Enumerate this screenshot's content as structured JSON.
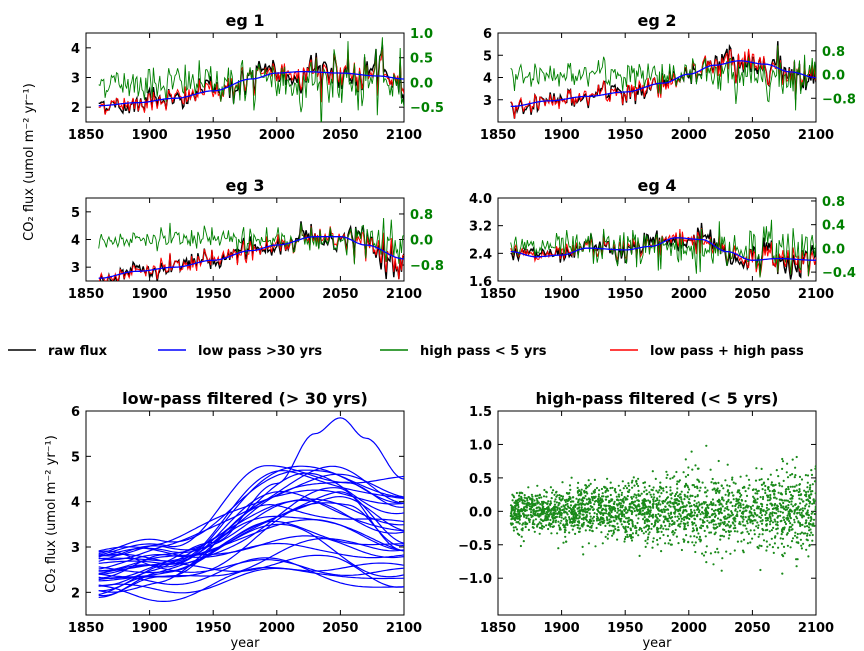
{
  "legend": [
    {
      "label": "raw flux",
      "color": "#000000"
    },
    {
      "label": "low pass >30 yrs",
      "color": "#0000ff"
    },
    {
      "label": "high pass < 5 yrs",
      "color": "#008000"
    },
    {
      "label": "low pass + high pass",
      "color": "#ff0000"
    }
  ],
  "shared_ylabel": "CO₂ flux (umol m⁻² yr⁻¹)",
  "chart_data": [
    {
      "type": "line",
      "title": "eg 1",
      "xlim": [
        1850,
        2100
      ],
      "xticks": [
        1850,
        1900,
        1950,
        2000,
        2050,
        2100
      ],
      "ylim": [
        1.5,
        4.5
      ],
      "yticks": [
        2,
        3,
        4
      ],
      "y2lim": [
        -0.8,
        1.0
      ],
      "y2ticks": [
        "1.0",
        "0.5",
        "0.0",
        "−0.5"
      ],
      "y2tick_values": [
        1.0,
        0.5,
        0.0,
        -0.5
      ],
      "low_pass": {
        "x": [
          1860,
          1890,
          1920,
          1950,
          1980,
          2000,
          2020,
          2050,
          2080,
          2100
        ],
        "y": [
          2.05,
          2.15,
          2.3,
          2.55,
          2.95,
          3.15,
          3.2,
          3.15,
          3.05,
          2.95
        ]
      },
      "raw_amplitude": 0.35,
      "high_pass_amplitude": 0.35
    },
    {
      "type": "line",
      "title": "eg 2",
      "xlim": [
        1850,
        2100
      ],
      "xticks": [
        1850,
        1900,
        1950,
        2000,
        2050,
        2100
      ],
      "ylim": [
        2.0,
        6.0
      ],
      "yticks": [
        3,
        4,
        5,
        6
      ],
      "y2lim": [
        -1.6,
        1.4
      ],
      "y2ticks": [
        "0.8",
        "0.0",
        "−0.8"
      ],
      "y2tick_values": [
        0.8,
        0.0,
        -0.8
      ],
      "low_pass": {
        "x": [
          1860,
          1890,
          1920,
          1950,
          1980,
          2000,
          2020,
          2040,
          2060,
          2080,
          2100
        ],
        "y": [
          2.7,
          2.95,
          3.15,
          3.35,
          3.75,
          4.15,
          4.55,
          4.75,
          4.6,
          4.25,
          4.0
        ]
      },
      "raw_amplitude": 0.5,
      "high_pass_amplitude": 0.45
    },
    {
      "type": "line",
      "title": "eg 3",
      "xlim": [
        1850,
        2100
      ],
      "xticks": [
        1850,
        1900,
        1950,
        2000,
        2050,
        2100
      ],
      "ylim": [
        2.5,
        5.5
      ],
      "yticks": [
        3,
        4,
        5
      ],
      "y2lim": [
        -1.3,
        1.3
      ],
      "y2ticks": [
        "0.8",
        "0.0",
        "−0.8"
      ],
      "y2tick_values": [
        0.8,
        0.0,
        -0.8
      ],
      "low_pass": {
        "x": [
          1860,
          1890,
          1920,
          1950,
          1980,
          2000,
          2030,
          2050,
          2070,
          2100
        ],
        "y": [
          2.6,
          2.85,
          3.0,
          3.25,
          3.6,
          3.8,
          4.1,
          4.1,
          3.8,
          3.3
        ]
      },
      "raw_amplitude": 0.35,
      "high_pass_amplitude": 0.3
    },
    {
      "type": "line",
      "title": "eg 4",
      "xlim": [
        1850,
        2100
      ],
      "xticks": [
        1850,
        1900,
        1950,
        2000,
        2050,
        2100
      ],
      "ylim": [
        1.6,
        4.0
      ],
      "yticks": [
        "1.6",
        "2.4",
        "3.2",
        "4.0"
      ],
      "ytick_values": [
        1.6,
        2.4,
        3.2,
        4.0
      ],
      "y2lim": [
        -0.55,
        0.85
      ],
      "y2ticks": [
        "0.8",
        "0.4",
        "0.0",
        "−0.4"
      ],
      "y2tick_values": [
        0.8,
        0.4,
        0.0,
        -0.4
      ],
      "low_pass": {
        "x": [
          1860,
          1880,
          1900,
          1920,
          1950,
          1970,
          1990,
          2010,
          2030,
          2050,
          2070,
          2100
        ],
        "y": [
          2.45,
          2.3,
          2.35,
          2.55,
          2.5,
          2.6,
          2.85,
          2.8,
          2.45,
          2.2,
          2.25,
          2.2
        ]
      },
      "raw_amplitude": 0.45,
      "high_pass_amplitude": 0.25
    },
    {
      "type": "line",
      "title": "low-pass filtered (> 30 yrs)",
      "xlabel": "year",
      "xlim": [
        1850,
        2100
      ],
      "xticks": [
        1850,
        1900,
        1950,
        2000,
        2050,
        2100
      ],
      "ylim": [
        1.5,
        6.0
      ],
      "yticks": [
        2,
        3,
        4,
        5,
        6
      ],
      "series_count": 30,
      "year_range": [
        1860,
        2100
      ],
      "highlighted_series": {
        "x": [
          1860,
          1900,
          1950,
          2000,
          2030,
          2050,
          2070,
          2100
        ],
        "y": [
          2.4,
          2.6,
          3.1,
          4.4,
          5.5,
          5.85,
          5.4,
          4.5
        ]
      }
    },
    {
      "type": "scatter",
      "title": "high-pass filtered (< 5 yrs)",
      "xlabel": "year",
      "xlim": [
        1850,
        2100
      ],
      "xticks": [
        1850,
        1900,
        1950,
        2000,
        2050,
        2100
      ],
      "ylim": [
        -1.55,
        1.5
      ],
      "yticks": [
        "1.5",
        "1.0",
        "0.5",
        "0.0",
        "−0.5",
        "−1.0"
      ],
      "ytick_values": [
        1.5,
        1.0,
        0.5,
        0.0,
        -0.5,
        -1.0
      ],
      "year_range": [
        1860,
        2100
      ],
      "point_count": 2400,
      "spread_start": 0.15,
      "spread_end": 0.32
    }
  ]
}
